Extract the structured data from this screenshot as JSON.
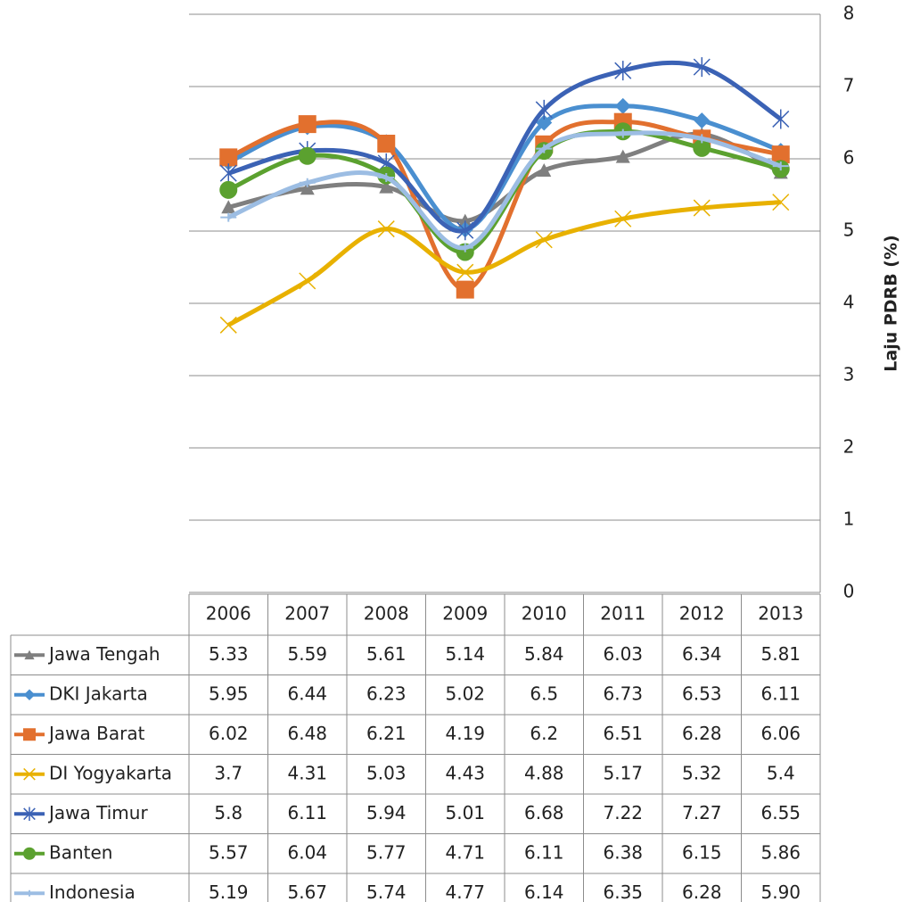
{
  "chart_data": {
    "type": "line",
    "y_axis_label": "Laju PDRB (%)",
    "categories": [
      "2006",
      "2007",
      "2008",
      "2009",
      "2010",
      "2011",
      "2012",
      "2013"
    ],
    "ylim": [
      0,
      8
    ],
    "yticks": [
      0,
      1,
      2,
      3,
      4,
      5,
      6,
      7,
      8
    ],
    "grid": true,
    "y_axis_side": "right",
    "smooth": true,
    "series": [
      {
        "name": "Jawa Tengah",
        "color": "#7f7f7f",
        "marker": "triangle",
        "values": [
          5.33,
          5.59,
          5.61,
          5.14,
          5.84,
          6.03,
          6.34,
          5.81
        ]
      },
      {
        "name": "DKI Jakarta",
        "color": "#4a8fd0",
        "marker": "diamond",
        "values": [
          5.95,
          6.44,
          6.23,
          5.02,
          6.5,
          6.73,
          6.53,
          6.11
        ]
      },
      {
        "name": "Jawa Barat",
        "color": "#e2702e",
        "marker": "square",
        "values": [
          6.02,
          6.48,
          6.21,
          4.19,
          6.2,
          6.51,
          6.28,
          6.06
        ]
      },
      {
        "name": "DI Yogyakarta",
        "color": "#e8b100",
        "marker": "x",
        "values": [
          3.7,
          4.31,
          5.03,
          4.43,
          4.88,
          5.17,
          5.32,
          5.4
        ]
      },
      {
        "name": "Jawa Timur",
        "color": "#3b62b5",
        "marker": "star",
        "values": [
          5.8,
          6.11,
          5.94,
          5.01,
          6.68,
          7.22,
          7.27,
          6.55
        ]
      },
      {
        "name": "Banten",
        "color": "#5ba12f",
        "marker": "circle",
        "values": [
          5.57,
          6.04,
          5.77,
          4.71,
          6.11,
          6.38,
          6.15,
          5.86
        ]
      },
      {
        "name": "Indonesia",
        "color": "#9cbde3",
        "marker": "dash",
        "values": [
          5.19,
          5.67,
          5.74,
          4.77,
          6.14,
          6.35,
          6.28,
          5.9
        ],
        "value_labels": [
          "5.19",
          "5.67",
          "5.74",
          "4.77",
          "6.14",
          "6.35",
          "6.28",
          "5.90"
        ]
      }
    ]
  }
}
